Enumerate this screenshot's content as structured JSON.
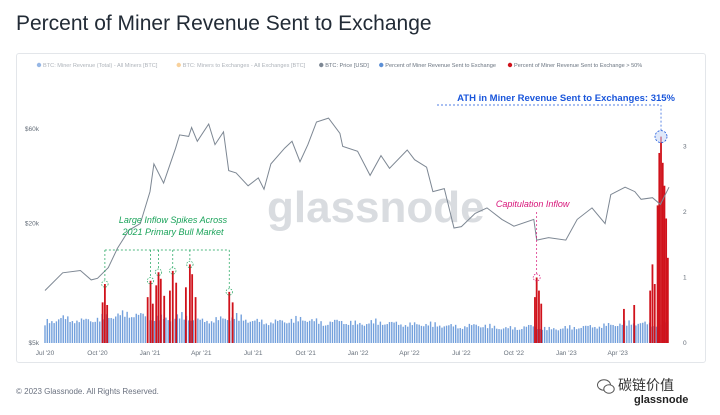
{
  "page": {
    "title": "Percent of Miner Revenue Sent to Exchange",
    "footer": "© 2023 Glassnode. All Rights Reserved."
  },
  "logo": {
    "brand": "glassnode",
    "cn_label": "碳链价值",
    "icon": "wechat-icon"
  },
  "watermark": "glassnode",
  "legend": [
    {
      "label": "BTC: Miner Revenue (Total) - All Miners [BTC]",
      "color": "#2f6fcb",
      "faded": true
    },
    {
      "label": "BTC: Miners to Exchanges - All Exchanges [BTC]",
      "color": "#f2a33a",
      "faded": true
    },
    {
      "label": "BTC: Price [USD]",
      "color": "#7d8793",
      "faded": false
    },
    {
      "label": "Percent of Miner Revenue Sent to Exchange",
      "color": "#5b8fd6",
      "faded": false
    },
    {
      "label": "Percent of Miner Revenue Sent to Exchange > 50%",
      "color": "#d0121b",
      "faded": false
    }
  ],
  "annotations": [
    {
      "text": "ATH in Miner Revenue Sent to Exchanges: 315%",
      "color": "#1a56db"
    },
    {
      "text": "Capitulation Inflow",
      "color": "#d8157a"
    },
    {
      "text": "Large Inflow Spikes Across",
      "color": "#1aa35a"
    },
    {
      "text": "2021 Primary Bull Market",
      "color": "#1aa35a"
    }
  ],
  "chart_data": {
    "type": "line",
    "x_tick_labels": [
      "Jul '20",
      "Oct '20",
      "Jan '21",
      "Apr '21",
      "Jul '21",
      "Oct '21",
      "Jan '22",
      "Apr '22",
      "Jul '22",
      "Oct '22",
      "Jan '23",
      "Apr '23"
    ],
    "x_range": [
      "2020-07-01",
      "2023-06-30"
    ],
    "y_left": {
      "scale": "log",
      "ticks": [
        5000,
        20000,
        60000
      ],
      "tick_labels": [
        "$5k",
        "$20k",
        "$60k"
      ],
      "range": [
        5000,
        90000
      ]
    },
    "y_right": {
      "ticks": [
        0,
        1,
        2,
        3
      ],
      "tick_labels": [
        "0",
        "1",
        "2",
        "3"
      ],
      "range": [
        0,
        3.8
      ]
    },
    "grid": false,
    "series": [
      {
        "name": "BTC: Price [USD]",
        "axis": "left",
        "color": "#7d8793",
        "points": [
          [
            "2020-07-01",
            9200
          ],
          [
            "2020-08-01",
            11300
          ],
          [
            "2020-09-01",
            11600
          ],
          [
            "2020-09-20",
            10400
          ],
          [
            "2020-10-01",
            10600
          ],
          [
            "2020-10-20",
            12000
          ],
          [
            "2020-11-05",
            15000
          ],
          [
            "2020-11-25",
            18500
          ],
          [
            "2020-12-15",
            20000
          ],
          [
            "2021-01-01",
            29000
          ],
          [
            "2021-01-08",
            40000
          ],
          [
            "2021-01-25",
            32000
          ],
          [
            "2021-02-15",
            48000
          ],
          [
            "2021-02-22",
            56000
          ],
          [
            "2021-03-10",
            55000
          ],
          [
            "2021-03-15",
            61000
          ],
          [
            "2021-03-25",
            52000
          ],
          [
            "2021-04-14",
            63500
          ],
          [
            "2021-04-25",
            50000
          ],
          [
            "2021-05-10",
            58000
          ],
          [
            "2021-05-19",
            37000
          ],
          [
            "2021-06-01",
            36000
          ],
          [
            "2021-06-22",
            31000
          ],
          [
            "2021-07-10",
            34000
          ],
          [
            "2021-07-20",
            29800
          ],
          [
            "2021-08-01",
            40000
          ],
          [
            "2021-08-25",
            48000
          ],
          [
            "2021-09-07",
            52000
          ],
          [
            "2021-09-21",
            41000
          ],
          [
            "2021-10-05",
            50000
          ],
          [
            "2021-10-20",
            65000
          ],
          [
            "2021-11-10",
            68000
          ],
          [
            "2021-11-30",
            57000
          ],
          [
            "2021-12-05",
            49000
          ],
          [
            "2021-12-31",
            46300
          ],
          [
            "2022-01-22",
            35000
          ],
          [
            "2022-02-10",
            44000
          ],
          [
            "2022-02-25",
            38000
          ],
          [
            "2022-03-28",
            47000
          ],
          [
            "2022-04-10",
            42000
          ],
          [
            "2022-05-01",
            38500
          ],
          [
            "2022-05-12",
            29000
          ],
          [
            "2022-06-01",
            30000
          ],
          [
            "2022-06-18",
            19000
          ],
          [
            "2022-07-01",
            19300
          ],
          [
            "2022-07-25",
            22500
          ],
          [
            "2022-08-15",
            24000
          ],
          [
            "2022-09-10",
            21000
          ],
          [
            "2022-10-01",
            19400
          ],
          [
            "2022-11-05",
            21000
          ],
          [
            "2022-11-10",
            16500
          ],
          [
            "2022-12-01",
            17000
          ],
          [
            "2022-12-31",
            16500
          ],
          [
            "2023-01-20",
            21000
          ],
          [
            "2023-02-15",
            24000
          ],
          [
            "2023-03-10",
            20000
          ],
          [
            "2023-03-20",
            28000
          ],
          [
            "2023-04-14",
            30500
          ],
          [
            "2023-05-01",
            29000
          ],
          [
            "2023-05-12",
            26500
          ],
          [
            "2023-06-01",
            27000
          ],
          [
            "2023-06-15",
            25000
          ],
          [
            "2023-06-30",
            30500
          ]
        ]
      },
      {
        "name": "Percent of Miner Revenue Sent to Exchange",
        "axis": "right",
        "color": "#5b8fd6",
        "points": [
          [
            "2020-07-01",
            0.28
          ],
          [
            "2020-08-01",
            0.34
          ],
          [
            "2020-09-01",
            0.3
          ],
          [
            "2020-10-01",
            0.33
          ],
          [
            "2020-11-01",
            0.38
          ],
          [
            "2020-12-01",
            0.4
          ],
          [
            "2021-01-01",
            0.35
          ],
          [
            "2021-02-01",
            0.33
          ],
          [
            "2021-03-01",
            0.37
          ],
          [
            "2021-04-01",
            0.3
          ],
          [
            "2021-05-01",
            0.32
          ],
          [
            "2021-06-01",
            0.36
          ],
          [
            "2021-07-01",
            0.3
          ],
          [
            "2021-08-01",
            0.28
          ],
          [
            "2021-09-01",
            0.31
          ],
          [
            "2021-10-01",
            0.33
          ],
          [
            "2021-11-01",
            0.27
          ],
          [
            "2021-12-01",
            0.3
          ],
          [
            "2022-01-01",
            0.26
          ],
          [
            "2022-02-01",
            0.29
          ],
          [
            "2022-03-01",
            0.27
          ],
          [
            "2022-04-01",
            0.25
          ],
          [
            "2022-05-01",
            0.26
          ],
          [
            "2022-06-01",
            0.24
          ],
          [
            "2022-07-01",
            0.22
          ],
          [
            "2022-08-01",
            0.25
          ],
          [
            "2022-09-01",
            0.21
          ],
          [
            "2022-10-01",
            0.2
          ],
          [
            "2022-11-01",
            0.23
          ],
          [
            "2022-12-01",
            0.19
          ],
          [
            "2023-01-01",
            0.21
          ],
          [
            "2023-02-01",
            0.22
          ],
          [
            "2023-03-01",
            0.23
          ],
          [
            "2023-04-01",
            0.26
          ],
          [
            "2023-05-01",
            0.28
          ],
          [
            "2023-06-01",
            0.25
          ],
          [
            "2023-06-30",
            0.28
          ]
        ]
      },
      {
        "name": "Percent of Miner Revenue Sent to Exchange > 50%",
        "axis": "right",
        "color": "#d0121b",
        "points": [
          [
            "2020-10-10",
            0.62
          ],
          [
            "2020-10-14",
            0.9
          ],
          [
            "2020-10-18",
            0.58
          ],
          [
            "2020-12-28",
            0.7
          ],
          [
            "2021-01-02",
            0.95
          ],
          [
            "2021-01-06",
            0.6
          ],
          [
            "2021-01-12",
            0.88
          ],
          [
            "2021-01-16",
            1.08
          ],
          [
            "2021-01-20",
            0.98
          ],
          [
            "2021-01-26",
            0.72
          ],
          [
            "2021-02-05",
            0.8
          ],
          [
            "2021-02-10",
            1.1
          ],
          [
            "2021-02-16",
            0.92
          ],
          [
            "2021-03-05",
            0.85
          ],
          [
            "2021-03-12",
            1.2
          ],
          [
            "2021-03-16",
            1.05
          ],
          [
            "2021-03-22",
            0.7
          ],
          [
            "2021-05-20",
            0.78
          ],
          [
            "2021-05-26",
            0.62
          ],
          [
            "2022-11-07",
            0.7
          ],
          [
            "2022-11-10",
            1.0
          ],
          [
            "2022-11-14",
            0.8
          ],
          [
            "2022-11-18",
            0.6
          ],
          [
            "2023-04-12",
            0.52
          ],
          [
            "2023-04-30",
            0.58
          ],
          [
            "2023-05-28",
            0.8
          ],
          [
            "2023-06-01",
            1.2
          ],
          [
            "2023-06-05",
            0.9
          ],
          [
            "2023-06-10",
            2.1
          ],
          [
            "2023-06-13",
            2.9
          ],
          [
            "2023-06-16",
            3.15
          ],
          [
            "2023-06-19",
            2.75
          ],
          [
            "2023-06-22",
            2.4
          ],
          [
            "2023-06-25",
            1.9
          ],
          [
            "2023-06-28",
            1.3
          ]
        ]
      }
    ]
  }
}
